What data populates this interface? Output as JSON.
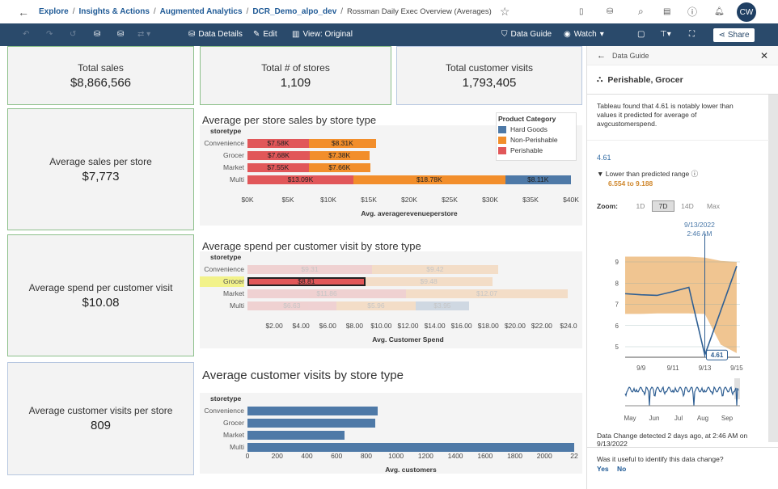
{
  "breadcrumb": {
    "items": [
      "Explore",
      "Insights & Actions",
      "Augmented Analytics",
      "DCR_Demo_alpo_dev"
    ],
    "current": "Rossman Daily Exec Overview (Averages)"
  },
  "user": {
    "initials": "CW"
  },
  "toolbar": {
    "data_details": "Data Details",
    "edit": "Edit",
    "view": "View: Original",
    "data_guide": "Data Guide",
    "watch": "Watch",
    "share": "Share"
  },
  "kpis": [
    {
      "label": "Total sales",
      "value": "$8,866,566"
    },
    {
      "label": "Total # of stores",
      "value": "1,109"
    },
    {
      "label": "Total customer visits",
      "value": "1,793,405"
    },
    {
      "label": "Average sales per store",
      "value": "$7,773"
    },
    {
      "label": "Average spend per customer visit",
      "value": "$10.08"
    },
    {
      "label": "Average customer visits per store",
      "value": "809"
    }
  ],
  "colors": {
    "hard_goods": "#4e79a7",
    "non_perishable": "#f28e2b",
    "perishable": "#e15759",
    "toolbar": "#2a4a6b",
    "link": "#1f5a96",
    "band": "#f0c591"
  },
  "chart_data": [
    {
      "type": "bar",
      "stacked": true,
      "title": "Average per store sales by store type",
      "row_header": "storetype",
      "xlabel": "Avg. averagerevenueperstore",
      "categories": [
        "Convenience",
        "Grocer",
        "Market",
        "Multi"
      ],
      "xlim": [
        0,
        40
      ],
      "ticks": [
        "$0K",
        "$5K",
        "$10K",
        "$15K",
        "$20K",
        "$25K",
        "$30K",
        "$35K",
        "$40K"
      ],
      "legend": {
        "title": "Product Category",
        "placement": "top-right",
        "entries": [
          "Hard Goods",
          "Non-Perishable",
          "Perishable"
        ]
      },
      "series": [
        {
          "name": "Perishable",
          "values": [
            7.58,
            7.68,
            7.55,
            13.09
          ],
          "labels": [
            "$7.58K",
            "$7.68K",
            "$7.55K",
            "$13.09K"
          ]
        },
        {
          "name": "Non-Perishable",
          "values": [
            8.31,
            7.38,
            7.66,
            18.78
          ],
          "labels": [
            "$8.31K",
            "$7.38K",
            "$7.66K",
            "$18.78K"
          ]
        },
        {
          "name": "Hard Goods",
          "values": [
            0,
            0,
            0,
            8.11
          ],
          "labels": [
            "",
            "",
            "",
            "$8.11K"
          ]
        }
      ]
    },
    {
      "type": "bar",
      "stacked": true,
      "title": "Average spend per customer visit by store type",
      "row_header": "storetype",
      "xlabel": "Avg. Customer Spend",
      "categories": [
        "Convenience",
        "Grocer",
        "Market",
        "Multi"
      ],
      "xlim": [
        0,
        24
      ],
      "ticks": [
        "$2.00",
        "$4.00",
        "$6.00",
        "$8.00",
        "$10.00",
        "$12.00",
        "$14.00",
        "$16.00",
        "$18.00",
        "$20.00",
        "$22.00",
        "$24.0"
      ],
      "highlight": "Perishable, Grocer",
      "series": [
        {
          "name": "Perishable",
          "values": [
            9.31,
            8.81,
            11.86,
            6.63
          ],
          "labels": [
            "$9.31",
            "$8.81",
            "$11.86",
            "$6.63"
          ]
        },
        {
          "name": "Non-Perishable",
          "values": [
            9.42,
            9.48,
            12.07,
            5.96
          ],
          "labels": [
            "$9.42",
            "$9.48",
            "$12.07",
            "$5.96"
          ]
        },
        {
          "name": "Hard Goods",
          "values": [
            0,
            0,
            0,
            3.95
          ],
          "labels": [
            "",
            "",
            "",
            "$3.95"
          ]
        }
      ]
    },
    {
      "type": "bar",
      "title": "Average customer visits by store type",
      "row_header": "storetype",
      "xlabel": "Avg. customers",
      "categories": [
        "Convenience",
        "Grocer",
        "Market",
        "Multi"
      ],
      "xlim": [
        0,
        2200
      ],
      "ticks": [
        "0",
        "200",
        "400",
        "600",
        "800",
        "1000",
        "1200",
        "1400",
        "1600",
        "1800",
        "2000",
        "22"
      ],
      "values": [
        877,
        861,
        654,
        2200
      ]
    },
    {
      "type": "line",
      "title": "",
      "x": [
        "9/8",
        "9/9",
        "9/10",
        "9/11",
        "9/12",
        "9/13",
        "9/14",
        "9/15"
      ],
      "y": [
        7.5,
        7.45,
        7.42,
        7.6,
        7.8,
        4.61,
        6.7,
        8.8
      ],
      "band_upper": [
        9.25,
        9.25,
        9.25,
        9.25,
        9.25,
        9.2,
        9.05,
        9.0
      ],
      "band_lower": [
        6.55,
        6.55,
        6.57,
        6.57,
        6.57,
        6.55,
        5.1,
        4.7
      ],
      "ylim": [
        4.5,
        9.3
      ],
      "yticks": [
        "5",
        "6",
        "7",
        "8",
        "9"
      ],
      "xticks": [
        "9/9",
        "9/11",
        "9/13",
        "9/15"
      ],
      "marker_label": "4.61",
      "marker_time": "9/13/2022",
      "marker_clock": "2:46 AM",
      "overview_ticks": [
        "May",
        "Jun",
        "Jul",
        "Aug",
        "Sep"
      ]
    }
  ],
  "guide": {
    "title": "Data Guide",
    "subject": "Perishable, Grocer",
    "description": "Tableau found that 4.61 is notably lower than values it predicted for average of avgcustomerspend.",
    "value": "4.61",
    "status": "Lower than predicted range",
    "range": "6.554 to 9.188",
    "zoom_label": "Zoom:",
    "zoom_options": [
      "1D",
      "7D",
      "14D",
      "Max"
    ],
    "zoom_selected": "7D",
    "detected": "Data Change detected 2 days ago, at 2:46 AM on 9/13/2022",
    "question": "Was it useful to identify this data change?",
    "yes": "Yes",
    "no": "No"
  }
}
